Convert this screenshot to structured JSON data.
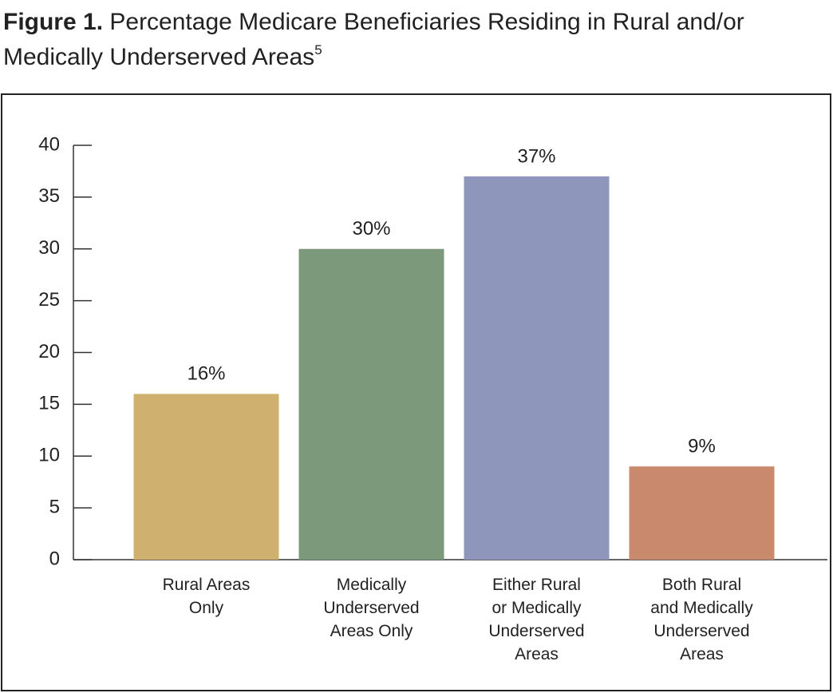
{
  "chart_data": {
    "type": "bar",
    "title_label": "Figure 1.",
    "title": "Percentage Medicare Beneficiaries Residing in Rural and/or Medically Underserved Areas",
    "title_footnote": "5",
    "categories": [
      "Rural Areas\nOnly",
      "Medically\nUnderserved\nAreas Only",
      "Either Rural\nor Medically\nUnderserved\nAreas",
      "Both Rural\nand Medically\nUnderserved\nAreas"
    ],
    "values": [
      16,
      30,
      37,
      9
    ],
    "value_labels": [
      "16%",
      "30%",
      "37%",
      "9%"
    ],
    "colors": [
      "#cfb06e",
      "#7c9a7b",
      "#8e96bb",
      "#c9896d"
    ],
    "ylim": [
      0,
      40
    ],
    "yticks": [
      0,
      5,
      10,
      15,
      20,
      25,
      30,
      35,
      40
    ],
    "grid": false
  }
}
